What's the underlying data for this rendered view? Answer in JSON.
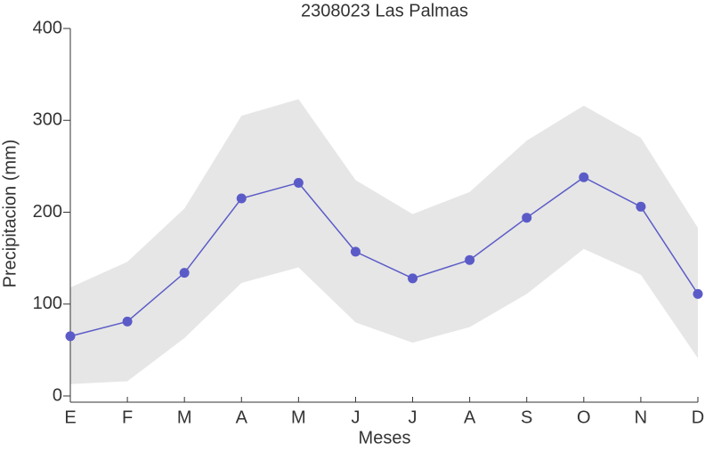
{
  "chart_data": {
    "type": "line",
    "title": "2308023 Las Palmas",
    "x_label": "Meses",
    "y_label": "Precipitacion (mm)",
    "categories": [
      "E",
      "F",
      "M",
      "A",
      "M",
      "J",
      "J",
      "A",
      "S",
      "O",
      "N",
      "D"
    ],
    "series": [
      {
        "color": "#5b5bc8",
        "values": [
          65,
          81,
          134,
          215,
          232,
          157,
          128,
          148,
          194,
          238,
          206,
          111
        ],
        "band_color": "#e6e6e6",
        "upper": [
          118,
          146,
          204,
          305,
          323,
          235,
          198,
          222,
          278,
          316,
          281,
          183
        ],
        "lower": [
          13,
          16,
          63,
          123,
          140,
          80,
          58,
          75,
          111,
          160,
          132,
          41
        ]
      }
    ],
    "ylim": [
      0,
      400
    ],
    "yticks": [
      0,
      100,
      200,
      300,
      400
    ],
    "grid": false
  }
}
